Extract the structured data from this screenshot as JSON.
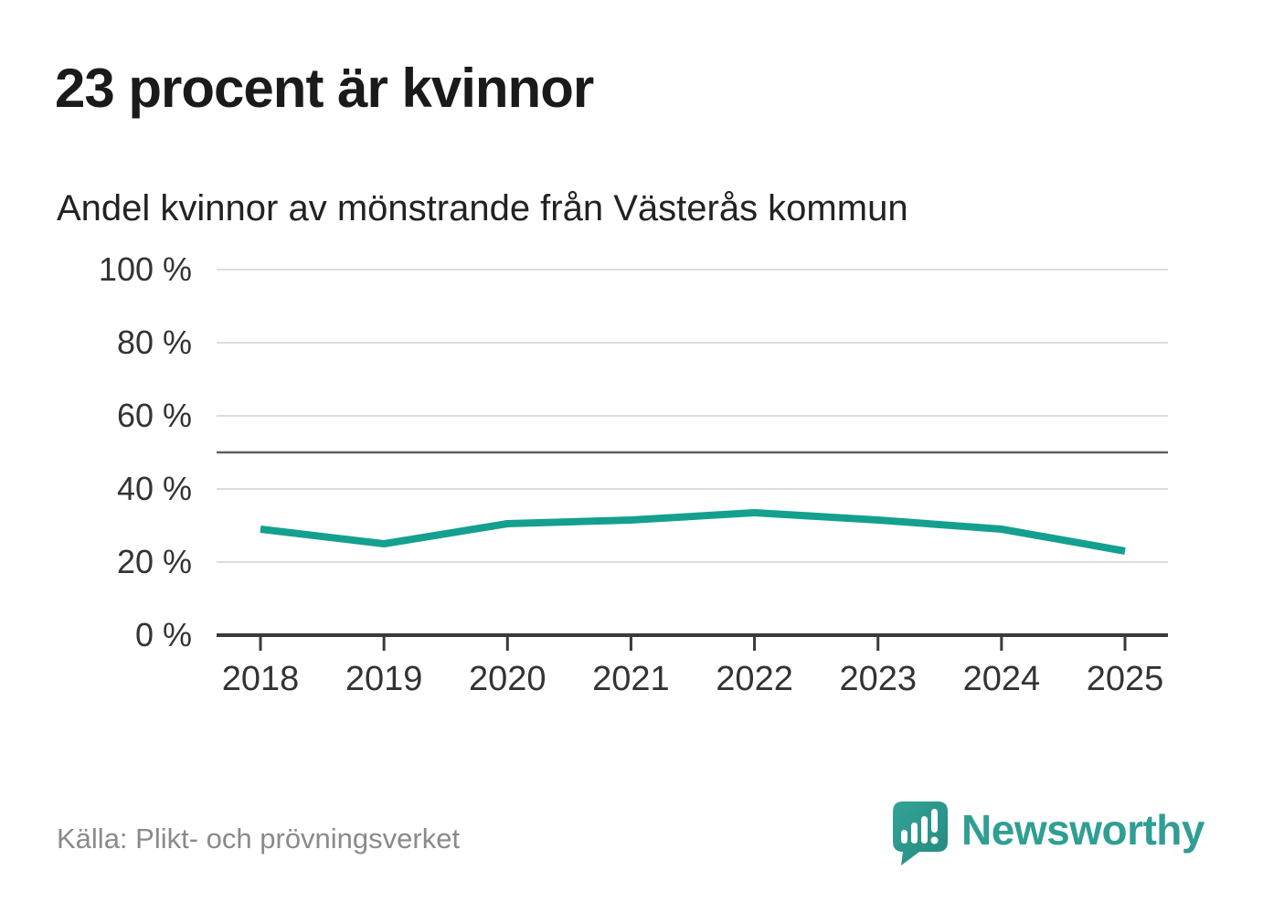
{
  "header": {
    "title": "23 procent är kvinnor"
  },
  "chart": {
    "subtitle": "Andel kvinnor av mönstrande från Västerås kommun"
  },
  "chart_data": {
    "type": "line",
    "title": "23 procent är kvinnor",
    "subtitle": "Andel kvinnor av mönstrande från Västerås kommun",
    "categories": [
      "2018",
      "2019",
      "2020",
      "2021",
      "2022",
      "2023",
      "2024",
      "2025"
    ],
    "series": [
      {
        "name": "Andel kvinnor av mönstrande",
        "values": [
          29,
          25,
          30.5,
          31.5,
          33.5,
          31.5,
          29,
          23
        ]
      }
    ],
    "xlabel": "",
    "ylabel": "",
    "ylim": [
      0,
      100
    ],
    "yticks": [
      0,
      20,
      40,
      60,
      80,
      100
    ],
    "ytick_suffix": " %",
    "reference_line": 50,
    "grid": true,
    "legend_position": "none",
    "colors": {
      "line": "#14a08f",
      "grid": "#dcdcdc",
      "reference": "#5f5f5f",
      "axis": "#3a3a3a",
      "tick_text": "#333333"
    }
  },
  "footer": {
    "source": "Källa: Plikt- och prövningsverket",
    "brand": "Newsworthy",
    "brand_color": "#2f9e93",
    "logo_icon": "speech-bubble-bar-chart-exclamation"
  }
}
